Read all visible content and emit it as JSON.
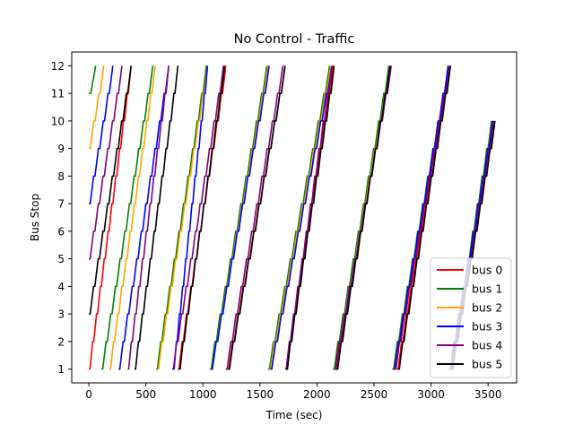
{
  "chart_data": {
    "type": "line",
    "title": "No Control - Traffic",
    "xlabel": "Time (sec)",
    "ylabel": "Bus Stop",
    "xlim": [
      -150,
      3750
    ],
    "ylim": [
      0.5,
      12.5
    ],
    "xticks": [
      0,
      500,
      1000,
      1500,
      2000,
      2500,
      3000,
      3500
    ],
    "xtick_labels": [
      "0",
      "500",
      "1000",
      "1500",
      "2000",
      "2500",
      "3000",
      "3500"
    ],
    "yticks": [
      1,
      2,
      3,
      4,
      5,
      6,
      7,
      8,
      9,
      10,
      11,
      12
    ],
    "ytick_labels": [
      "1",
      "2",
      "3",
      "4",
      "5",
      "6",
      "7",
      "8",
      "9",
      "10",
      "11",
      "12"
    ],
    "grid": false,
    "legend_position": "lower-right",
    "series": [
      {
        "name": "bus 0",
        "color": "#ff0000",
        "trips": [
          {
            "start_stop": 1,
            "start_time": 0,
            "end_stop": 12,
            "end_time": 370
          },
          {
            "start_stop": 1,
            "start_time": 780,
            "end_stop": 12,
            "end_time": 1200
          },
          {
            "start_stop": 1,
            "start_time": 1215,
            "end_stop": 12,
            "end_time": 1720
          },
          {
            "start_stop": 1,
            "start_time": 1730,
            "end_stop": 12,
            "end_time": 2140
          },
          {
            "start_stop": 1,
            "start_time": 2160,
            "end_stop": 12,
            "end_time": 2640
          },
          {
            "start_stop": 1,
            "start_time": 2700,
            "end_stop": 12,
            "end_time": 3160
          },
          {
            "start_stop": 1,
            "start_time": 3170,
            "end_stop": 10,
            "end_time": 3550
          }
        ]
      },
      {
        "name": "bus 1",
        "color": "#008000",
        "trips": [
          {
            "start_stop": 11,
            "start_time": 0,
            "end_stop": 12,
            "end_time": 60
          },
          {
            "start_stop": 1,
            "start_time": 110,
            "end_stop": 12,
            "end_time": 560
          },
          {
            "start_stop": 1,
            "start_time": 590,
            "end_stop": 12,
            "end_time": 1030
          },
          {
            "start_stop": 1,
            "start_time": 1060,
            "end_stop": 12,
            "end_time": 1560
          },
          {
            "start_stop": 1,
            "start_time": 1570,
            "end_stop": 12,
            "end_time": 2110
          },
          {
            "start_stop": 1,
            "start_time": 2140,
            "end_stop": 12,
            "end_time": 2630
          },
          {
            "start_stop": 1,
            "start_time": 2660,
            "end_stop": 12,
            "end_time": 3150
          },
          {
            "start_stop": 1,
            "start_time": 3160,
            "end_stop": 10,
            "end_time": 3530
          }
        ]
      },
      {
        "name": "bus 2",
        "color": "#ffa500",
        "trips": [
          {
            "start_stop": 9,
            "start_time": 0,
            "end_stop": 12,
            "end_time": 130
          },
          {
            "start_stop": 1,
            "start_time": 180,
            "end_stop": 12,
            "end_time": 580
          },
          {
            "start_stop": 1,
            "start_time": 600,
            "end_stop": 12,
            "end_time": 1040
          },
          {
            "start_stop": 1,
            "start_time": 1070,
            "end_stop": 12,
            "end_time": 1570
          },
          {
            "start_stop": 1,
            "start_time": 1580,
            "end_stop": 12,
            "end_time": 2120
          },
          {
            "start_stop": 1,
            "start_time": 2150,
            "end_stop": 12,
            "end_time": 2640
          },
          {
            "start_stop": 1,
            "start_time": 2670,
            "end_stop": 12,
            "end_time": 3160
          },
          {
            "start_stop": 1,
            "start_time": 3165,
            "end_stop": 10,
            "end_time": 3540
          }
        ]
      },
      {
        "name": "bus 3",
        "color": "#0000ff",
        "trips": [
          {
            "start_stop": 7,
            "start_time": 0,
            "end_stop": 12,
            "end_time": 210
          },
          {
            "start_stop": 1,
            "start_time": 260,
            "end_stop": 12,
            "end_time": 700
          },
          {
            "start_stop": 1,
            "start_time": 740,
            "end_stop": 12,
            "end_time": 1040
          },
          {
            "start_stop": 1,
            "start_time": 1070,
            "end_stop": 12,
            "end_time": 1580
          },
          {
            "start_stop": 1,
            "start_time": 1590,
            "end_stop": 12,
            "end_time": 2130
          },
          {
            "start_stop": 1,
            "start_time": 2150,
            "end_stop": 12,
            "end_time": 2650
          },
          {
            "start_stop": 1,
            "start_time": 2670,
            "end_stop": 12,
            "end_time": 3150
          },
          {
            "start_stop": 1,
            "start_time": 3160,
            "end_stop": 10,
            "end_time": 3540
          }
        ]
      },
      {
        "name": "bus 4",
        "color": "#800080",
        "trips": [
          {
            "start_stop": 5,
            "start_time": 0,
            "end_stop": 12,
            "end_time": 290
          },
          {
            "start_stop": 1,
            "start_time": 340,
            "end_stop": 12,
            "end_time": 700
          },
          {
            "start_stop": 1,
            "start_time": 730,
            "end_stop": 12,
            "end_time": 1180
          },
          {
            "start_stop": 1,
            "start_time": 1200,
            "end_stop": 12,
            "end_time": 1700
          },
          {
            "start_stop": 1,
            "start_time": 1720,
            "end_stop": 12,
            "end_time": 2130
          },
          {
            "start_stop": 1,
            "start_time": 2150,
            "end_stop": 12,
            "end_time": 2650
          },
          {
            "start_stop": 1,
            "start_time": 2680,
            "end_stop": 12,
            "end_time": 3160
          },
          {
            "start_stop": 1,
            "start_time": 3170,
            "end_stop": 10,
            "end_time": 3550
          }
        ]
      },
      {
        "name": "bus 5",
        "color": "#000000",
        "trips": [
          {
            "start_stop": 3,
            "start_time": 0,
            "end_stop": 12,
            "end_time": 370
          },
          {
            "start_stop": 1,
            "start_time": 400,
            "end_stop": 12,
            "end_time": 780
          },
          {
            "start_stop": 1,
            "start_time": 790,
            "end_stop": 12,
            "end_time": 1190
          },
          {
            "start_stop": 1,
            "start_time": 1220,
            "end_stop": 12,
            "end_time": 1720
          },
          {
            "start_stop": 1,
            "start_time": 1730,
            "end_stop": 12,
            "end_time": 2150
          },
          {
            "start_stop": 1,
            "start_time": 2170,
            "end_stop": 12,
            "end_time": 2640
          },
          {
            "start_stop": 1,
            "start_time": 2710,
            "end_stop": 12,
            "end_time": 3170
          },
          {
            "start_stop": 1,
            "start_time": 3180,
            "end_stop": 10,
            "end_time": 3560
          }
        ]
      }
    ]
  }
}
